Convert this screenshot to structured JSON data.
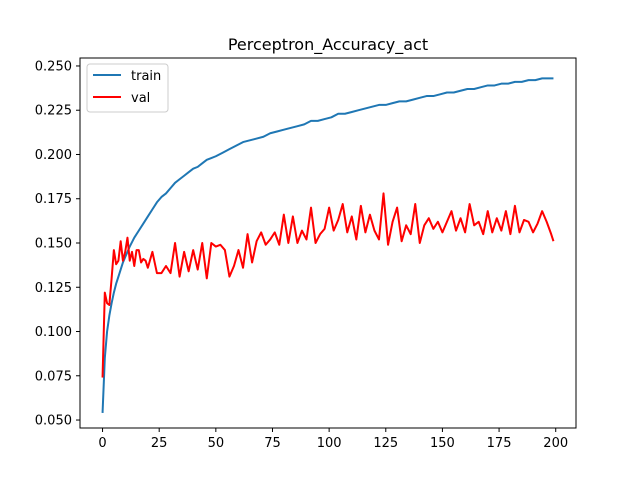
{
  "chart_data": {
    "type": "line",
    "title": "Perceptron_Accuracy_act",
    "xlabel": "",
    "ylabel": "",
    "xlim": [
      -9.95,
      208.95
    ],
    "ylim": [
      0.0455,
      0.2545
    ],
    "xticks": [
      0,
      25,
      50,
      75,
      100,
      125,
      150,
      175,
      200
    ],
    "yticks": [
      0.05,
      0.075,
      0.1,
      0.125,
      0.15,
      0.175,
      0.2,
      0.225,
      0.25
    ],
    "xtick_labels": [
      "0",
      "25",
      "50",
      "75",
      "100",
      "125",
      "150",
      "175",
      "200"
    ],
    "ytick_labels": [
      "0.050",
      "0.075",
      "0.100",
      "0.125",
      "0.150",
      "0.175",
      "0.200",
      "0.225",
      "0.250"
    ],
    "grid": false,
    "legend": {
      "position": "top-left"
    },
    "series": [
      {
        "name": "train",
        "color": "#1f77b4",
        "x": [
          0,
          1,
          2,
          3,
          4,
          5,
          6,
          7,
          8,
          9,
          10,
          12,
          14,
          16,
          18,
          20,
          22,
          24,
          26,
          28,
          30,
          32,
          34,
          36,
          38,
          40,
          42,
          44,
          46,
          48,
          50,
          53,
          56,
          59,
          62,
          65,
          68,
          71,
          74,
          77,
          80,
          83,
          86,
          89,
          92,
          95,
          98,
          101,
          104,
          107,
          110,
          113,
          116,
          119,
          122,
          125,
          128,
          131,
          134,
          137,
          140,
          143,
          146,
          149,
          152,
          155,
          158,
          161,
          164,
          167,
          170,
          173,
          176,
          179,
          182,
          185,
          188,
          191,
          194,
          197,
          199
        ],
        "y": [
          0.054,
          0.085,
          0.1,
          0.109,
          0.116,
          0.122,
          0.127,
          0.131,
          0.135,
          0.139,
          0.142,
          0.148,
          0.153,
          0.157,
          0.161,
          0.165,
          0.169,
          0.173,
          0.176,
          0.178,
          0.181,
          0.184,
          0.186,
          0.188,
          0.19,
          0.192,
          0.193,
          0.195,
          0.197,
          0.198,
          0.199,
          0.201,
          0.203,
          0.205,
          0.207,
          0.208,
          0.209,
          0.21,
          0.212,
          0.213,
          0.214,
          0.215,
          0.216,
          0.217,
          0.219,
          0.219,
          0.22,
          0.221,
          0.223,
          0.223,
          0.224,
          0.225,
          0.226,
          0.227,
          0.228,
          0.228,
          0.229,
          0.23,
          0.23,
          0.231,
          0.232,
          0.233,
          0.233,
          0.234,
          0.235,
          0.235,
          0.236,
          0.237,
          0.237,
          0.238,
          0.239,
          0.239,
          0.24,
          0.24,
          0.241,
          0.241,
          0.242,
          0.242,
          0.243,
          0.243,
          0.243
        ]
      },
      {
        "name": "val",
        "color": "#ff0000",
        "x": [
          0,
          1,
          2,
          3,
          4,
          5,
          6,
          7,
          8,
          9,
          10,
          11,
          12,
          13,
          14,
          15,
          16,
          17,
          18,
          19,
          20,
          22,
          24,
          26,
          28,
          30,
          32,
          34,
          36,
          38,
          40,
          42,
          44,
          46,
          48,
          50,
          52,
          54,
          56,
          58,
          60,
          62,
          64,
          66,
          68,
          70,
          72,
          74,
          76,
          78,
          80,
          82,
          84,
          86,
          88,
          90,
          92,
          94,
          96,
          98,
          100,
          102,
          104,
          106,
          108,
          110,
          112,
          114,
          116,
          118,
          120,
          122,
          124,
          126,
          128,
          130,
          132,
          134,
          136,
          138,
          140,
          142,
          144,
          146,
          148,
          150,
          152,
          154,
          156,
          158,
          160,
          162,
          164,
          166,
          168,
          170,
          172,
          174,
          176,
          178,
          180,
          182,
          184,
          186,
          188,
          190,
          192,
          194,
          196,
          198,
          199
        ],
        "y": [
          0.074,
          0.122,
          0.116,
          0.115,
          0.13,
          0.146,
          0.138,
          0.14,
          0.151,
          0.14,
          0.145,
          0.153,
          0.14,
          0.145,
          0.137,
          0.146,
          0.146,
          0.139,
          0.141,
          0.14,
          0.136,
          0.145,
          0.133,
          0.133,
          0.137,
          0.133,
          0.15,
          0.131,
          0.145,
          0.134,
          0.146,
          0.135,
          0.15,
          0.13,
          0.15,
          0.148,
          0.149,
          0.146,
          0.131,
          0.137,
          0.146,
          0.136,
          0.155,
          0.139,
          0.151,
          0.156,
          0.149,
          0.152,
          0.156,
          0.149,
          0.166,
          0.15,
          0.165,
          0.15,
          0.157,
          0.152,
          0.17,
          0.15,
          0.155,
          0.158,
          0.17,
          0.157,
          0.163,
          0.172,
          0.156,
          0.165,
          0.152,
          0.171,
          0.156,
          0.166,
          0.157,
          0.152,
          0.178,
          0.149,
          0.162,
          0.17,
          0.151,
          0.16,
          0.155,
          0.172,
          0.15,
          0.16,
          0.164,
          0.158,
          0.162,
          0.156,
          0.162,
          0.168,
          0.157,
          0.164,
          0.156,
          0.172,
          0.16,
          0.162,
          0.155,
          0.168,
          0.156,
          0.164,
          0.157,
          0.168,
          0.155,
          0.171,
          0.156,
          0.163,
          0.162,
          0.156,
          0.161,
          0.168,
          0.162,
          0.155,
          0.151
        ]
      }
    ]
  }
}
